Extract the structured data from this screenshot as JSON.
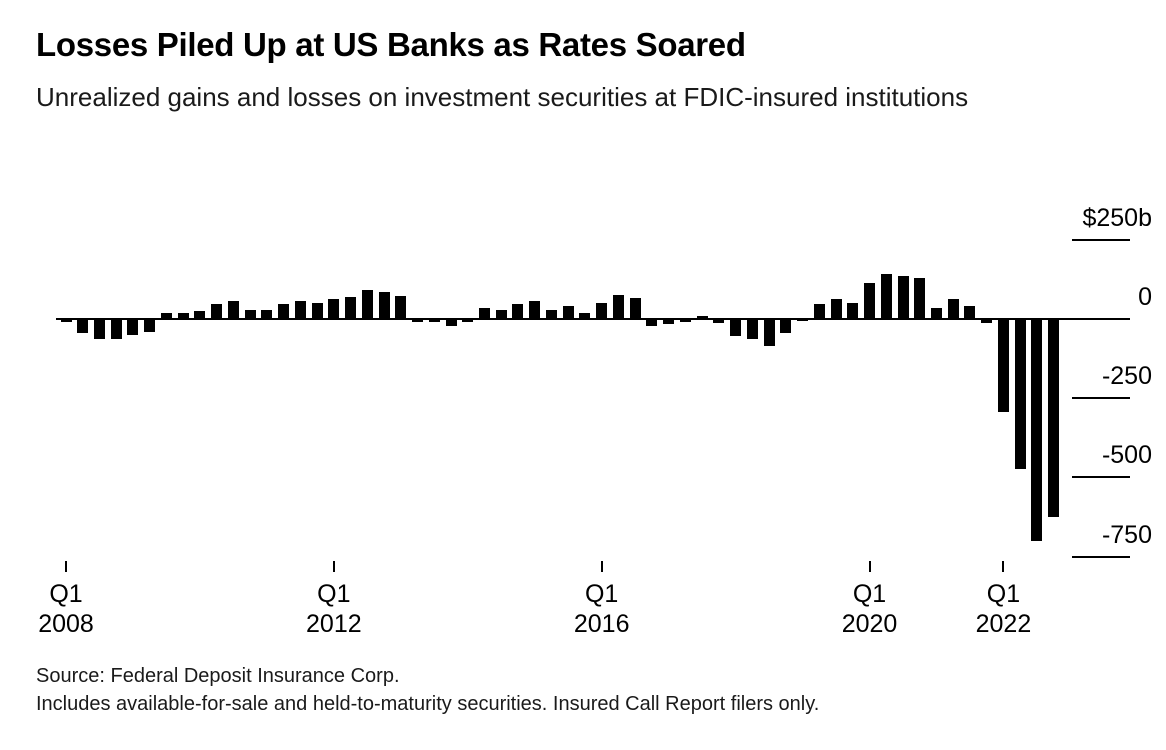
{
  "header": {
    "title": "Losses Piled Up at US Banks as Rates Soared",
    "subtitle": "Unrealized gains and losses on investment securities at FDIC-insured institutions"
  },
  "chart_data": {
    "type": "bar",
    "title": "Losses Piled Up at US Banks as Rates Soared",
    "subtitle": "Unrealized gains and losses on investment securities at FDIC-insured institutions",
    "unit": "billions of US dollars",
    "bar_color": "#000000",
    "ylim": [
      -800,
      275
    ],
    "grid": "right-side tick dashes only",
    "categories": [
      "Q1 2008",
      "Q2 2008",
      "Q3 2008",
      "Q4 2008",
      "Q1 2009",
      "Q2 2009",
      "Q3 2009",
      "Q4 2009",
      "Q1 2010",
      "Q2 2010",
      "Q3 2010",
      "Q4 2010",
      "Q1 2011",
      "Q2 2011",
      "Q3 2011",
      "Q4 2011",
      "Q1 2012",
      "Q2 2012",
      "Q3 2012",
      "Q4 2012",
      "Q1 2013",
      "Q2 2013",
      "Q3 2013",
      "Q4 2013",
      "Q1 2014",
      "Q2 2014",
      "Q3 2014",
      "Q4 2014",
      "Q1 2015",
      "Q2 2015",
      "Q3 2015",
      "Q4 2015",
      "Q1 2016",
      "Q2 2016",
      "Q3 2016",
      "Q4 2016",
      "Q1 2017",
      "Q2 2017",
      "Q3 2017",
      "Q4 2017",
      "Q1 2018",
      "Q2 2018",
      "Q3 2018",
      "Q4 2018",
      "Q1 2019",
      "Q2 2019",
      "Q3 2019",
      "Q4 2019",
      "Q1 2020",
      "Q2 2020",
      "Q3 2020",
      "Q4 2020",
      "Q1 2021",
      "Q2 2021",
      "Q3 2021",
      "Q4 2021",
      "Q1 2022",
      "Q2 2022",
      "Q3 2022",
      "Q4 2022"
    ],
    "values": [
      -8,
      -45,
      -63,
      -63,
      -52,
      -40,
      20,
      18,
      26,
      47,
      58,
      28,
      28,
      46,
      57,
      52,
      63,
      68,
      90,
      84,
      74,
      -10,
      -10,
      -22,
      -10,
      34,
      28,
      46,
      57,
      28,
      41,
      18,
      49,
      75,
      67,
      -22,
      -17,
      -8,
      10,
      -14,
      -54,
      -64,
      -85,
      -45,
      -5,
      47,
      63,
      52,
      113,
      141,
      136,
      128,
      34,
      63,
      40,
      -14,
      -295,
      -475,
      -700,
      -625
    ],
    "yticks": [
      {
        "label": "$250b",
        "value": 250
      },
      {
        "label": "0",
        "value": 0
      },
      {
        "label": "-250",
        "value": -250
      },
      {
        "label": "-500",
        "value": -500
      },
      {
        "label": "-750",
        "value": -750
      }
    ],
    "xticks": [
      {
        "line1": "Q1",
        "line2": "2008",
        "index": 0
      },
      {
        "line1": "Q1",
        "line2": "2012",
        "index": 16
      },
      {
        "line1": "Q1",
        "line2": "2016",
        "index": 32
      },
      {
        "line1": "Q1",
        "line2": "2020",
        "index": 48
      },
      {
        "line1": "Q1",
        "line2": "2022",
        "index": 56
      }
    ],
    "legend": null
  },
  "footer": {
    "source": "Source: Federal Deposit Insurance Corp.",
    "note": "Includes available-for-sale and held-to-maturity securities. Insured Call Report filers only."
  }
}
